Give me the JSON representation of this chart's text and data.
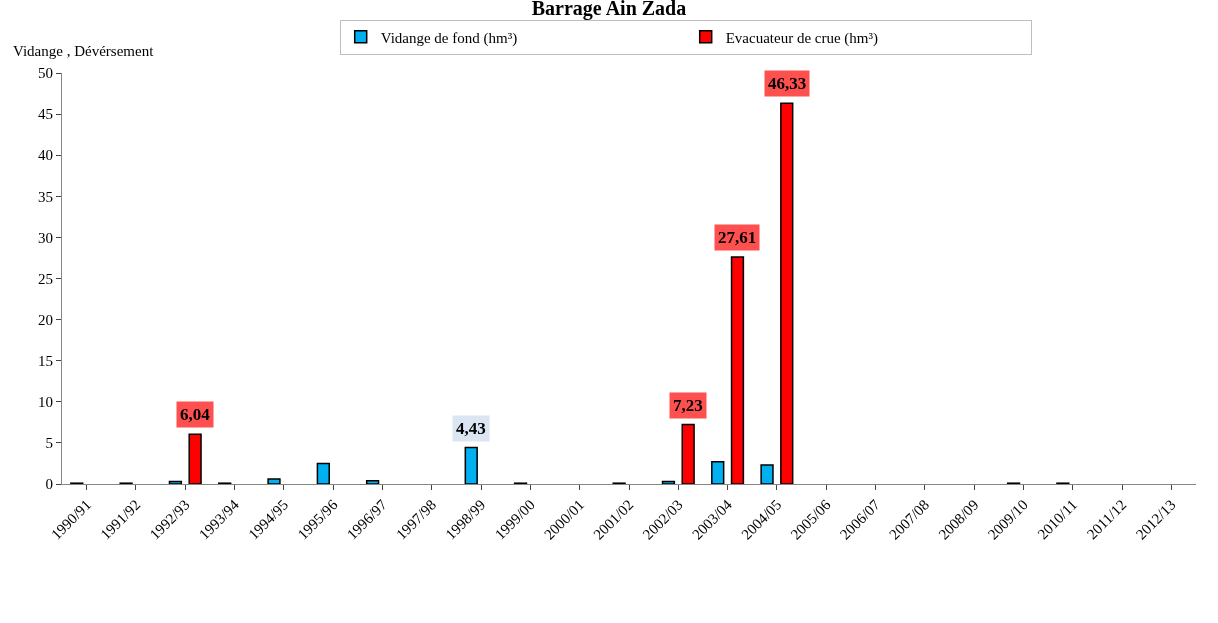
{
  "chart_data": {
    "type": "bar",
    "title": "Barrage Ain Zada",
    "ylabel": "Vidange , Dévérsement",
    "categories": [
      "1990/91",
      "1991/92",
      "1992/93",
      "1993/94",
      "1994/95",
      "1995/96",
      "1996/97",
      "1997/98",
      "1998/99",
      "1999/00",
      "2000/01",
      "2001/02",
      "2002/03",
      "2003/04",
      "2004/05",
      "2005/06",
      "2006/07",
      "2007/08",
      "2008/09",
      "2009/10",
      "2010/11",
      "2011/12",
      "2012/13"
    ],
    "series": [
      {
        "name": "Vidange de fond (hm³)",
        "color": "#00b0f0",
        "values": [
          0.1,
          0.1,
          0.3,
          0.1,
          0.6,
          2.5,
          0.4,
          null,
          4.43,
          0.1,
          null,
          0.1,
          0.3,
          2.7,
          2.3,
          null,
          null,
          null,
          null,
          0.1,
          0.1,
          null,
          null
        ],
        "value_labels": [
          null,
          null,
          null,
          null,
          null,
          null,
          null,
          null,
          "4,43",
          null,
          null,
          null,
          null,
          null,
          null,
          null,
          null,
          null,
          null,
          null,
          null,
          null,
          null
        ]
      },
      {
        "name": "Evacuateur de crue (hm³)",
        "color": "#ff0000",
        "values": [
          null,
          null,
          6.04,
          null,
          null,
          null,
          null,
          null,
          null,
          null,
          null,
          null,
          7.23,
          27.61,
          46.33,
          null,
          null,
          null,
          null,
          null,
          null,
          null,
          null
        ],
        "value_labels": [
          null,
          null,
          "6,04",
          null,
          null,
          null,
          null,
          null,
          null,
          null,
          null,
          null,
          "7,23",
          "27,61",
          "46,33",
          null,
          null,
          null,
          null,
          null,
          null,
          null,
          null
        ]
      }
    ],
    "ylim": [
      0,
      50
    ],
    "yticks": [
      0,
      5,
      10,
      15,
      20,
      25,
      30,
      35,
      40,
      45,
      50
    ],
    "legend": "top"
  }
}
